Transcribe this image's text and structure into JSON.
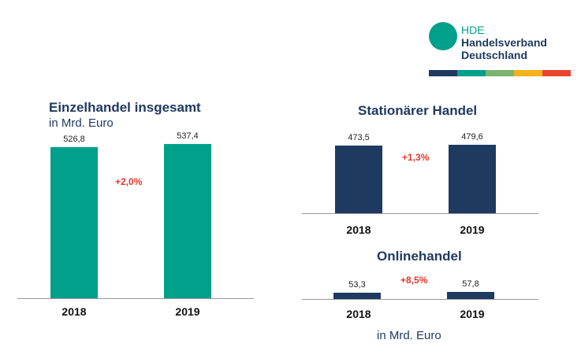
{
  "logo": {
    "line1": "HDE",
    "line2": "Handelsverband",
    "line3": "Deutschland",
    "stripe_colors": [
      "#1f3a60",
      "#00a08a",
      "#7cb36e",
      "#f5b21b",
      "#e8452f"
    ]
  },
  "unit_bottom": "in Mrd. Euro",
  "chart_data": [
    {
      "type": "bar",
      "title": "Einzelhandel insgesamt",
      "subtitle": "in Mrd. Euro",
      "categories": [
        "2018",
        "2019"
      ],
      "values": [
        526.8,
        537.4
      ],
      "value_labels": [
        "526,8",
        "537,4"
      ],
      "change_label": "+2,0%",
      "color": "#00a08a"
    },
    {
      "type": "bar",
      "title": "Stationärer Handel",
      "categories": [
        "2018",
        "2019"
      ],
      "values": [
        473.5,
        479.6
      ],
      "value_labels": [
        "473,5",
        "479,6"
      ],
      "change_label": "+1,3%",
      "color": "#1f3a60"
    },
    {
      "type": "bar",
      "title": "Onlinehandel",
      "categories": [
        "2018",
        "2019"
      ],
      "values": [
        53.3,
        57.8
      ],
      "value_labels": [
        "53,3",
        "57,8"
      ],
      "change_label": "+8,5%",
      "color": "#1f3a60"
    }
  ]
}
